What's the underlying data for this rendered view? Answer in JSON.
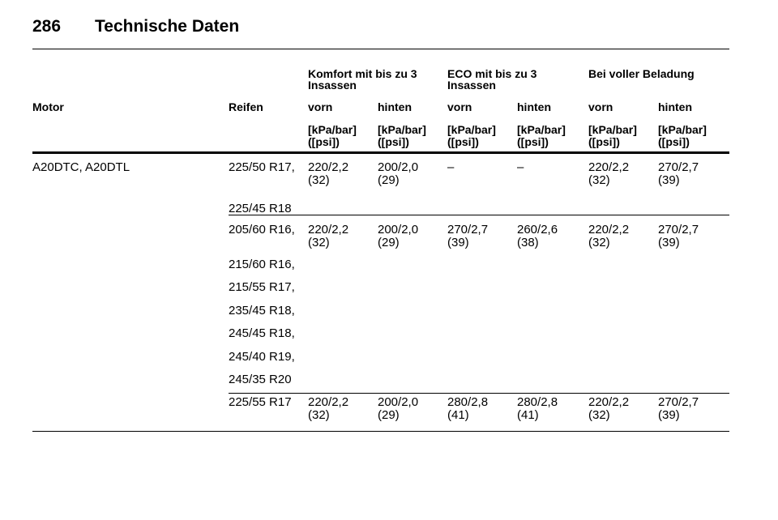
{
  "header": {
    "page_number": "286",
    "title": "Technische Daten"
  },
  "table": {
    "groups": [
      [
        "Komfort mit bis zu 3",
        "Insassen"
      ],
      [
        "ECO mit bis zu 3",
        "Insassen"
      ],
      [
        "Bei voller Beladung"
      ]
    ],
    "columns": [
      "Motor",
      "Reifen",
      "vorn",
      "hinten",
      "vorn",
      "hinten",
      "vorn",
      "hinten"
    ],
    "units": [
      [
        "[kPa/bar]",
        "([psi])"
      ],
      [
        "[kPa/bar]",
        "([psi])"
      ],
      [
        "[kPa/bar]",
        "([psi])"
      ],
      [
        "[kPa/bar]",
        "([psi])"
      ],
      [
        "[kPa/bar]",
        "([psi])"
      ],
      [
        "[kPa/bar]",
        "([psi])"
      ]
    ],
    "rows": [
      {
        "motor": "A20DTC, A20DTL",
        "tyres": [
          "225/50 R17,",
          "225/45 R18"
        ],
        "values": [
          [
            "220/2,2",
            "(32)"
          ],
          [
            "200/2,0",
            "(29)"
          ],
          [
            "–"
          ],
          [
            "–"
          ],
          [
            "220/2,2",
            "(32)"
          ],
          [
            "270/2,7",
            "(39)"
          ]
        ]
      },
      {
        "tyres": [
          "205/60 R16,",
          "215/60 R16,",
          "215/55 R17,",
          "235/45 R18,",
          "245/45 R18,",
          "245/40 R19,",
          "245/35 R20"
        ],
        "values": [
          [
            "220/2,2",
            "(32)"
          ],
          [
            "200/2,0",
            "(29)"
          ],
          [
            "270/2,7",
            "(39)"
          ],
          [
            "260/2,6",
            "(38)"
          ],
          [
            "220/2,2",
            "(32)"
          ],
          [
            "270/2,7",
            "(39)"
          ]
        ]
      },
      {
        "tyres": [
          "225/55 R17"
        ],
        "values": [
          [
            "220/2,2",
            "(32)"
          ],
          [
            "200/2,0",
            "(29)"
          ],
          [
            "280/2,8",
            "(41)"
          ],
          [
            "280/2,8",
            "(41)"
          ],
          [
            "220/2,2",
            "(32)"
          ],
          [
            "270/2,7",
            "(39)"
          ]
        ]
      }
    ]
  }
}
